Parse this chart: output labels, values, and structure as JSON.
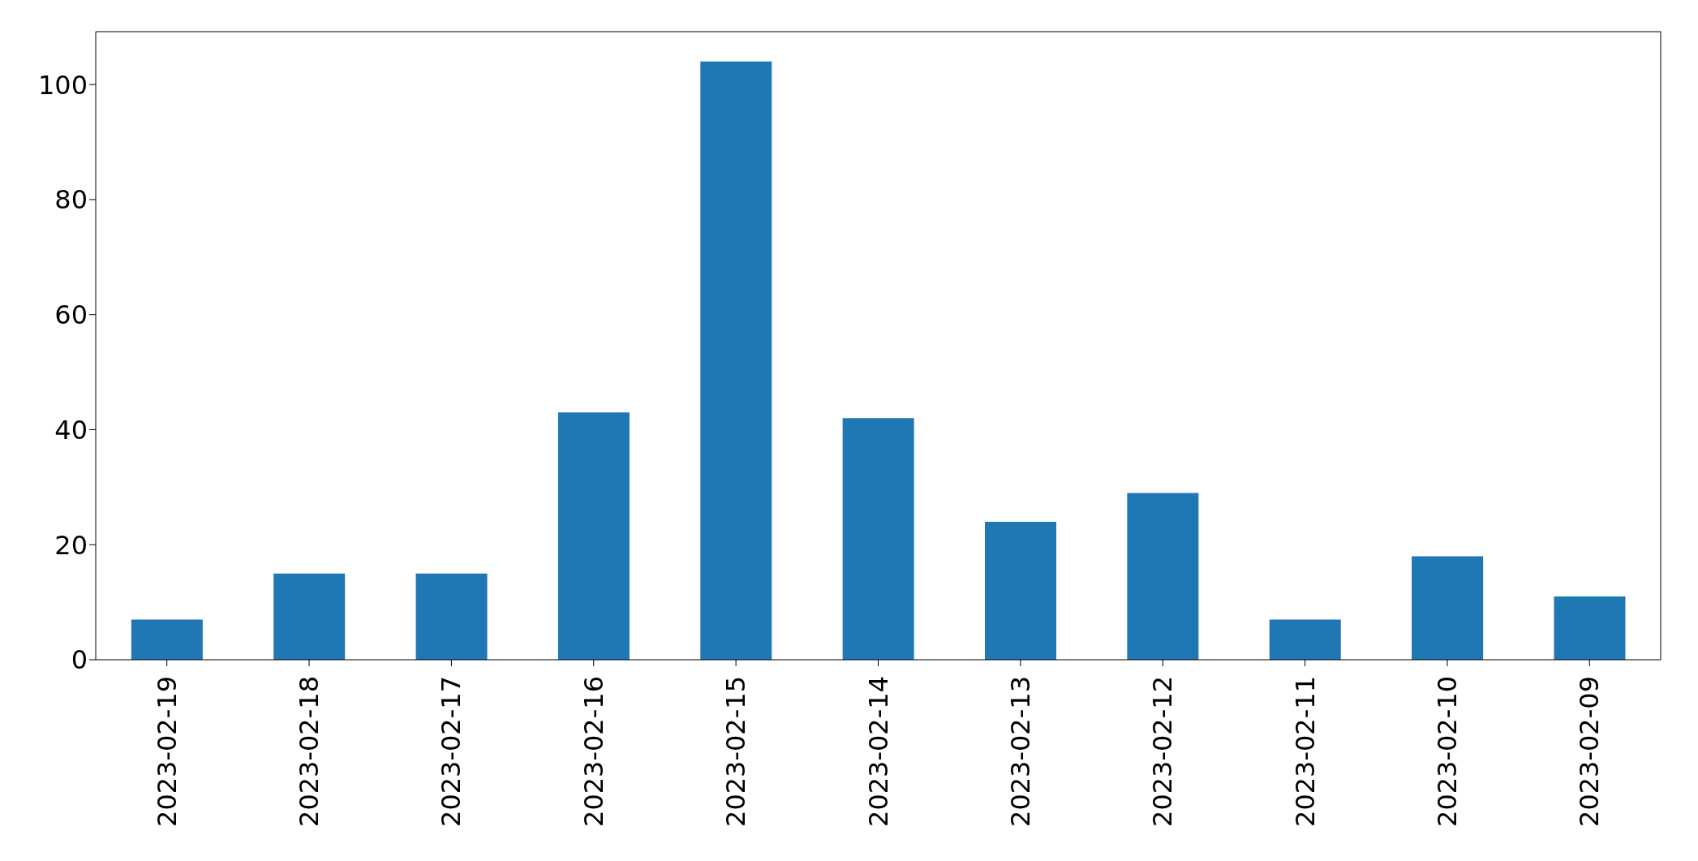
{
  "chart_data": {
    "type": "bar",
    "categories": [
      "2023-02-19",
      "2023-02-18",
      "2023-02-17",
      "2023-02-16",
      "2023-02-15",
      "2023-02-14",
      "2023-02-13",
      "2023-02-12",
      "2023-02-11",
      "2023-02-10",
      "2023-02-09"
    ],
    "values": [
      7,
      15,
      15,
      43,
      104,
      42,
      24,
      29,
      7,
      18,
      11
    ],
    "color": "#1f77b4",
    "ylim": [
      0,
      109.2
    ],
    "yticks": [
      0,
      20,
      40,
      60,
      80,
      100
    ],
    "grid": false,
    "legend": false
  }
}
